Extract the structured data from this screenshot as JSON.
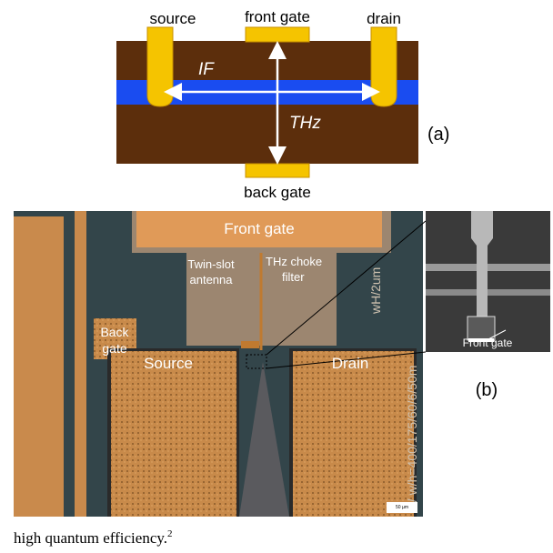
{
  "diagram_a": {
    "labels": {
      "source": "source",
      "front_gate": "front gate",
      "drain": "drain",
      "if": "IF",
      "thz": "THz",
      "back_gate": "back gate"
    },
    "panel": "(a)"
  },
  "micrograph": {
    "labels": {
      "front_gate": "Front gate",
      "antenna": [
        "Twin-slot",
        "antenna"
      ],
      "choke": [
        "THz choke",
        "filter"
      ],
      "back_gate": [
        "Back",
        "gate"
      ],
      "source": "Source",
      "drain": "Drain",
      "chip_text_1": "wH/2um",
      "chip_text_2": "5/ w/h=400/175/60/6/50m",
      "scale": "50 µm"
    }
  },
  "sem_inset": {
    "label": "Front gate",
    "panel": "(b)"
  },
  "caption": {
    "text": "high quantum efficiency.",
    "superscript": "2"
  }
}
